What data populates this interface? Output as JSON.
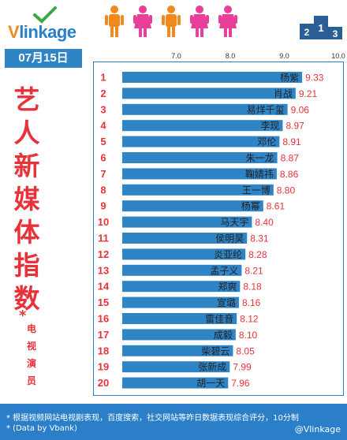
{
  "header": {
    "logo_text_v": "V",
    "logo_text_rest": "linkage",
    "date": "07月15日"
  },
  "title": {
    "chars": [
      "艺",
      "人",
      "新",
      "媒",
      "体",
      "指",
      "数"
    ],
    "star": "*",
    "sub_chars": [
      "电",
      "视",
      "演",
      "员"
    ]
  },
  "footer": {
    "note1": "* 根据视频网站电视剧表现，百度搜索，社交网站等昨日数据表现综合评分，10分制",
    "note2": "* (Data by Vbank)",
    "watermark": "@Vlinkage"
  },
  "colors": {
    "bar": "#2f84c6",
    "rank": "#e8323a",
    "value": "#e8323a",
    "accent_orange": "#f08a1c",
    "figure_pink": "#e8409a"
  },
  "chart_data": {
    "type": "bar",
    "orientation": "horizontal",
    "x_ticks": [
      "7.0",
      "8.0",
      "9.0",
      "10.0"
    ],
    "xlim": [
      6.0,
      10.0
    ],
    "categories": [
      "杨紫",
      "肖战",
      "易烊千玺",
      "李现",
      "邓伦",
      "朱一龙",
      "鞠婧祎",
      "王一博",
      "杨幂",
      "马天宇",
      "侯明昊",
      "炎亚纶",
      "孟子义",
      "郑爽",
      "宣璐",
      "雷佳音",
      "成毅",
      "柴碧云",
      "张新成",
      "胡一天"
    ],
    "ranks": [
      "1",
      "2",
      "3",
      "4",
      "5",
      "6",
      "7",
      "8",
      "9",
      "10",
      "11",
      "12",
      "13",
      "14",
      "15",
      "16",
      "17",
      "18",
      "19",
      "20"
    ],
    "values": [
      9.33,
      9.21,
      9.06,
      8.97,
      8.91,
      8.87,
      8.86,
      8.8,
      8.61,
      8.4,
      8.31,
      8.28,
      8.21,
      8.18,
      8.16,
      8.12,
      8.1,
      8.05,
      7.99,
      7.96
    ],
    "value_labels": [
      "9.33",
      "9.21",
      "9.06",
      "8.97",
      "8.91",
      "8.87",
      "8.86",
      "8.80",
      "8.61",
      "8.40",
      "8.31",
      "8.28",
      "8.21",
      "8.18",
      "8.16",
      "8.12",
      "8.10",
      "8.05",
      "7.99",
      "7.96"
    ]
  }
}
